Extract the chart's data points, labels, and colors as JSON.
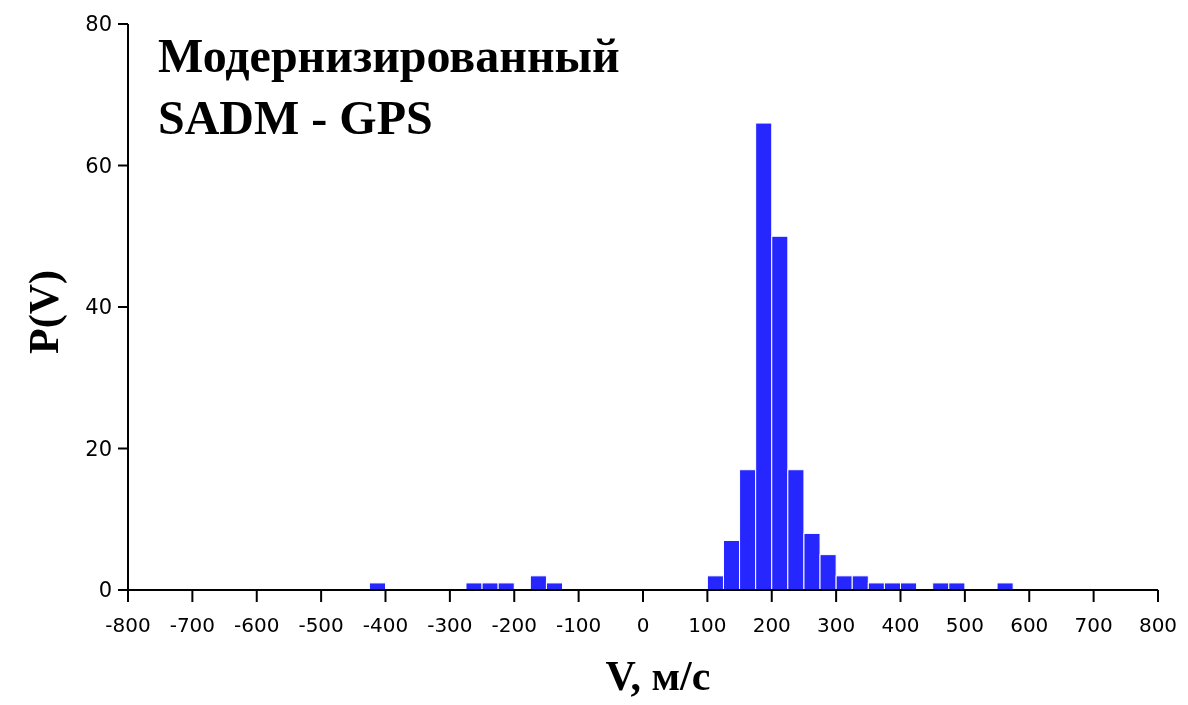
{
  "chart_data": {
    "type": "histogram",
    "title": "Модернизированный\nSADM - GPS",
    "xlabel": "V, м/с",
    "ylabel": "P(V)",
    "bins": [
      -800,
      -775,
      -750,
      -725,
      -700,
      -675,
      -650,
      -625,
      -600,
      -575,
      -550,
      -525,
      -500,
      -475,
      -450,
      -425,
      -400,
      -375,
      -350,
      -325,
      -300,
      -275,
      -250,
      -225,
      -200,
      -175,
      -150,
      -125,
      -100,
      -75,
      -50,
      -25,
      0,
      25,
      50,
      75,
      100,
      125,
      150,
      175,
      200,
      225,
      250,
      275,
      300,
      325,
      350,
      375,
      400,
      425,
      450,
      475,
      500,
      525,
      550,
      575,
      600,
      625,
      650,
      675,
      700,
      725,
      750,
      775,
      800
    ],
    "values": [
      0,
      0,
      0,
      0,
      0,
      0,
      0,
      0,
      0,
      0,
      0,
      0,
      0,
      0,
      0,
      1,
      0,
      0,
      0,
      0,
      0,
      1,
      1,
      1,
      0,
      2,
      1,
      0,
      0,
      0,
      0,
      0,
      0,
      0,
      0,
      0,
      2,
      7,
      17,
      66,
      50,
      17,
      8,
      5,
      2,
      2,
      1,
      1,
      1,
      0,
      1,
      1,
      0,
      0,
      1,
      0,
      0,
      0,
      0,
      0,
      0,
      0,
      0,
      0
    ],
    "color": "#2626ff",
    "xlim": [
      -800,
      800
    ],
    "xticks": [
      -800,
      -700,
      -600,
      -500,
      -400,
      -300,
      -200,
      -100,
      0,
      100,
      200,
      300,
      400,
      500,
      600,
      700,
      800
    ],
    "ylim": [
      0,
      80
    ],
    "yticks": [
      0,
      20,
      40,
      60,
      80
    ],
    "grid": false
  }
}
